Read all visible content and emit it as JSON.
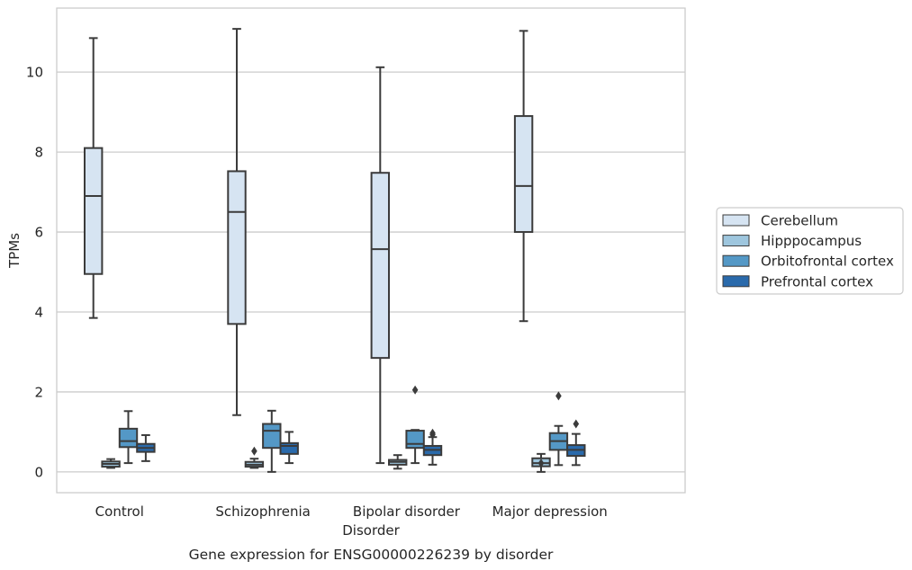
{
  "chart_data": {
    "type": "box",
    "title": "Gene expression for ENSG00000226239 by disorder",
    "xlabel": "Disorder",
    "ylabel": "TPMs",
    "ylim": [
      -0.52,
      11.6
    ],
    "yticks": [
      0,
      2,
      4,
      6,
      8,
      10
    ],
    "grid": "horizontal",
    "legend_position": "right",
    "categories": [
      "Control",
      "Schizophrenia",
      "Bipolar disorder",
      "Major depression"
    ],
    "series": [
      {
        "name": "Cerebellum",
        "color": "#d6e4f2",
        "boxes": [
          {
            "whisker_low": 3.85,
            "q1": 4.95,
            "median": 6.9,
            "q3": 8.1,
            "whisker_high": 10.85,
            "outliers": []
          },
          {
            "whisker_low": 1.42,
            "q1": 3.7,
            "median": 6.5,
            "q3": 7.52,
            "whisker_high": 11.08,
            "outliers": []
          },
          {
            "whisker_low": 0.22,
            "q1": 2.85,
            "median": 5.57,
            "q3": 7.48,
            "whisker_high": 10.12,
            "outliers": []
          },
          {
            "whisker_low": 3.77,
            "q1": 6.0,
            "median": 7.15,
            "q3": 8.9,
            "whisker_high": 11.03,
            "outliers": []
          }
        ]
      },
      {
        "name": "Hipppocampus",
        "color": "#9ec6de",
        "boxes": [
          {
            "whisker_low": 0.1,
            "q1": 0.13,
            "median": 0.2,
            "q3": 0.26,
            "whisker_high": 0.32,
            "outliers": []
          },
          {
            "whisker_low": 0.1,
            "q1": 0.13,
            "median": 0.18,
            "q3": 0.25,
            "whisker_high": 0.33,
            "outliers": [
              0.52
            ]
          },
          {
            "whisker_low": 0.08,
            "q1": 0.18,
            "median": 0.25,
            "q3": 0.3,
            "whisker_high": 0.42,
            "outliers": []
          },
          {
            "whisker_low": 0.0,
            "q1": 0.14,
            "median": 0.22,
            "q3": 0.34,
            "whisker_high": 0.45,
            "outliers": [
              0.22
            ]
          }
        ]
      },
      {
        "name": "Orbitofrontal cortex",
        "color": "#5498c6",
        "boxes": [
          {
            "whisker_low": 0.22,
            "q1": 0.62,
            "median": 0.77,
            "q3": 1.08,
            "whisker_high": 1.52,
            "outliers": []
          },
          {
            "whisker_low": 0.0,
            "q1": 0.6,
            "median": 1.03,
            "q3": 1.2,
            "whisker_high": 1.53,
            "outliers": []
          },
          {
            "whisker_low": 0.22,
            "q1": 0.6,
            "median": 0.7,
            "q3": 1.03,
            "whisker_high": 1.05,
            "outliers": [
              2.05
            ]
          },
          {
            "whisker_low": 0.17,
            "q1": 0.55,
            "median": 0.77,
            "q3": 0.97,
            "whisker_high": 1.15,
            "outliers": [
              1.9
            ]
          }
        ]
      },
      {
        "name": "Prefrontal cortex",
        "color": "#2a6aab",
        "boxes": [
          {
            "whisker_low": 0.27,
            "q1": 0.5,
            "median": 0.6,
            "q3": 0.7,
            "whisker_high": 0.92,
            "outliers": []
          },
          {
            "whisker_low": 0.22,
            "q1": 0.45,
            "median": 0.65,
            "q3": 0.72,
            "whisker_high": 1.0,
            "outliers": []
          },
          {
            "whisker_low": 0.18,
            "q1": 0.42,
            "median": 0.55,
            "q3": 0.65,
            "whisker_high": 0.87,
            "outliers": [
              0.97,
              0.93
            ]
          },
          {
            "whisker_low": 0.17,
            "q1": 0.4,
            "median": 0.55,
            "q3": 0.67,
            "whisker_high": 0.95,
            "outliers": [
              1.2
            ]
          }
        ]
      }
    ]
  }
}
